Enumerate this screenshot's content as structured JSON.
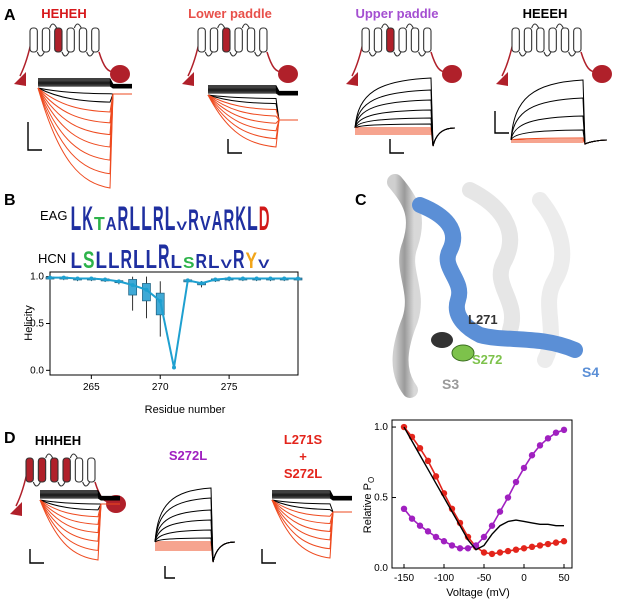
{
  "panels": {
    "A": {
      "label": "A",
      "constructs": [
        {
          "name": "HEHEH",
          "color": "#d7191c"
        },
        {
          "name": "Lower paddle",
          "color": "#e8504a"
        },
        {
          "name": "Upper paddle",
          "color": "#a44fd1"
        },
        {
          "name": "HEEEH",
          "color": "#000000"
        }
      ]
    },
    "B": {
      "label": "B",
      "logo_rows": [
        {
          "name": "EAG",
          "letters": "LKTARLLRLVRVARKLD"
        },
        {
          "name": "HCN",
          "letters": "LSLLRLLRLSRLVRYV"
        }
      ]
    },
    "C": {
      "label": "C",
      "residue_labels": [
        "L271",
        "S272"
      ],
      "helix_labels": [
        "S3",
        "S4"
      ],
      "colors": {
        "S4": "#5b8fd6",
        "S3": "#8a8a8a",
        "L271": "#333333",
        "S272": "#7dc24b"
      }
    },
    "D": {
      "label": "D",
      "constructs": [
        {
          "name": "HHHEH",
          "color": "#000000"
        },
        {
          "name": "S272L",
          "color": "#a020c0"
        },
        {
          "name": "L271S",
          "color": "#e3241b"
        },
        {
          "name": "+",
          "color": "#e3241b"
        },
        {
          "name": "S272L",
          "color": "#e3241b"
        }
      ]
    }
  },
  "chart_data": [
    {
      "type": "line",
      "panel": "B",
      "ylabel": "Helicity",
      "xlabel": "Residue number",
      "xlim": [
        262,
        280
      ],
      "ylim": [
        -0.05,
        1.05
      ],
      "xticks": [
        265,
        270,
        275
      ],
      "yticks": [
        "0.0",
        "0.5",
        "1.0"
      ],
      "series_color": "#1ea0d0",
      "x": [
        262,
        263,
        264,
        265,
        266,
        267,
        268,
        269,
        270,
        271,
        272,
        273,
        274,
        275,
        276,
        277,
        278,
        279,
        280
      ],
      "values": [
        0.99,
        0.99,
        0.98,
        0.98,
        0.97,
        0.95,
        0.91,
        0.86,
        0.74,
        0.03,
        0.96,
        0.93,
        0.97,
        0.98,
        0.98,
        0.98,
        0.98,
        0.98,
        0.98
      ]
    },
    {
      "type": "line",
      "panel": "D",
      "ylabel": "Relative P",
      "ylabel_sub": "O",
      "xlabel": "Voltage (mV)",
      "xlim": [
        -165,
        60
      ],
      "ylim": [
        0,
        1.05
      ],
      "xticks": [
        "-150",
        "-100",
        "-50",
        "0",
        "50"
      ],
      "yticks": [
        "0.0",
        "0.5",
        "1.0"
      ],
      "series": [
        {
          "name": "L271S + S272L",
          "color": "#e3241b",
          "x": [
            -150,
            -140,
            -130,
            -120,
            -110,
            -100,
            -90,
            -80,
            -70,
            -60,
            -50,
            -40,
            -30,
            -20,
            -10,
            0,
            10,
            20,
            30,
            40,
            50
          ],
          "values": [
            1.0,
            0.93,
            0.85,
            0.76,
            0.65,
            0.53,
            0.42,
            0.32,
            0.22,
            0.15,
            0.11,
            0.1,
            0.11,
            0.12,
            0.13,
            0.14,
            0.15,
            0.16,
            0.17,
            0.18,
            0.19
          ]
        },
        {
          "name": "S272L",
          "color": "#a020c0",
          "x": [
            -150,
            -140,
            -130,
            -120,
            -110,
            -100,
            -90,
            -80,
            -70,
            -60,
            -50,
            -40,
            -30,
            -20,
            -10,
            0,
            10,
            20,
            30,
            40,
            50
          ],
          "values": [
            0.42,
            0.35,
            0.3,
            0.26,
            0.22,
            0.19,
            0.16,
            0.14,
            0.14,
            0.16,
            0.22,
            0.3,
            0.4,
            0.5,
            0.61,
            0.71,
            0.8,
            0.87,
            0.92,
            0.96,
            0.98
          ]
        },
        {
          "name": "HHHEH",
          "color": "#000000",
          "x": [
            -150,
            -140,
            -130,
            -120,
            -110,
            -100,
            -90,
            -80,
            -70,
            -60,
            -50,
            -40,
            -30,
            -20,
            -10,
            0,
            10,
            20,
            30,
            40,
            50
          ],
          "values": [
            1.0,
            0.9,
            0.8,
            0.7,
            0.6,
            0.5,
            0.4,
            0.3,
            0.2,
            0.13,
            0.16,
            0.24,
            0.3,
            0.33,
            0.34,
            0.33,
            0.32,
            0.31,
            0.31,
            0.3,
            0.3
          ]
        }
      ]
    }
  ]
}
